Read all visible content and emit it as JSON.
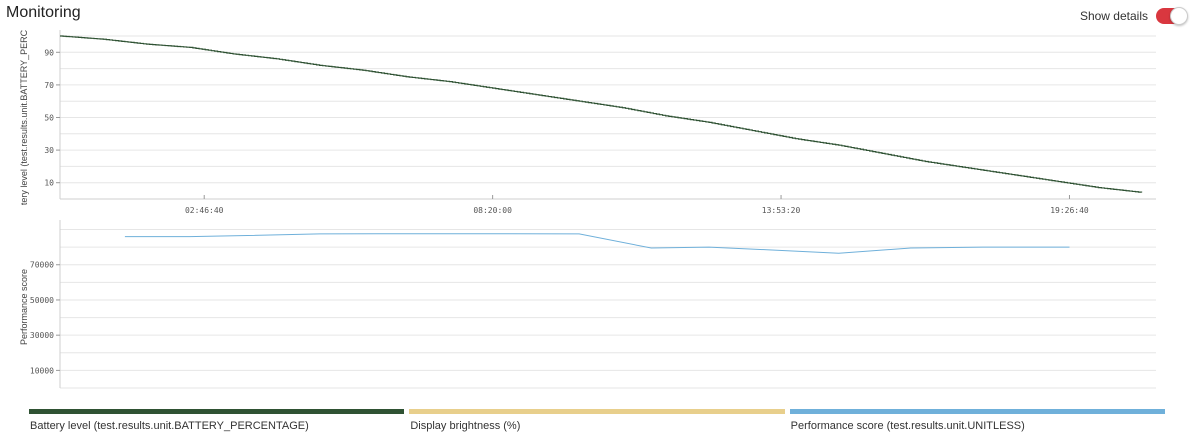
{
  "page": {
    "title": "Monitoring"
  },
  "controls": {
    "show_details_label": "Show details",
    "show_details_on": true,
    "toggle_color": "#d9373f"
  },
  "legend": [
    {
      "label": "Battery level (test.results.unit.BATTERY_PERCENTAGE)",
      "color": "#2f5233"
    },
    {
      "label": "Display brightness (%)",
      "color": "#e8cf8c"
    },
    {
      "label": "Performance score (test.results.unit.UNITLESS)",
      "color": "#6fb0da"
    }
  ],
  "chart_data": [
    {
      "type": "line",
      "ylabel": "tery level (test.results.unit.BATTERY_PERC",
      "ylim": [
        0,
        100
      ],
      "yticks": [
        10,
        30,
        50,
        70,
        90
      ],
      "xlim": [
        0,
        76000
      ],
      "xticks": [
        {
          "value": 10000,
          "label": "02:46:40"
        },
        {
          "value": 30000,
          "label": "08:20:00"
        },
        {
          "value": 50000,
          "label": "13:53:20"
        },
        {
          "value": 70000,
          "label": "19:26:40"
        }
      ],
      "grid": true,
      "series": [
        {
          "color": "#2f5233",
          "x": [
            0,
            3000,
            6000,
            9000,
            12000,
            15000,
            18000,
            21000,
            24000,
            27000,
            30000,
            33000,
            36000,
            39000,
            42000,
            45000,
            48000,
            51000,
            54000,
            57000,
            60000,
            63000,
            66000,
            69000,
            72000,
            75000
          ],
          "y": [
            100,
            98,
            95,
            93,
            89,
            86,
            82,
            79,
            75,
            72,
            68,
            64,
            60,
            56,
            51,
            47,
            42,
            37,
            33,
            28,
            23,
            19,
            15,
            11,
            7,
            4
          ]
        }
      ]
    },
    {
      "type": "line",
      "ylabel": "Performance score",
      "ylim": [
        0,
        92000
      ],
      "yticks": [
        10000,
        30000,
        50000,
        70000
      ],
      "xlim": [
        0,
        76000
      ],
      "grid": true,
      "series": [
        {
          "color": "#6fb0da",
          "x": [
            4500,
            9000,
            13000,
            18000,
            22000,
            27000,
            31000,
            36000,
            41000,
            45000,
            49000,
            54000,
            59000,
            64000,
            70000
          ],
          "y": [
            86000,
            86000,
            86600,
            87500,
            87600,
            87600,
            87600,
            87500,
            79500,
            80000,
            78500,
            76500,
            79500,
            80000,
            80000
          ]
        }
      ]
    }
  ]
}
